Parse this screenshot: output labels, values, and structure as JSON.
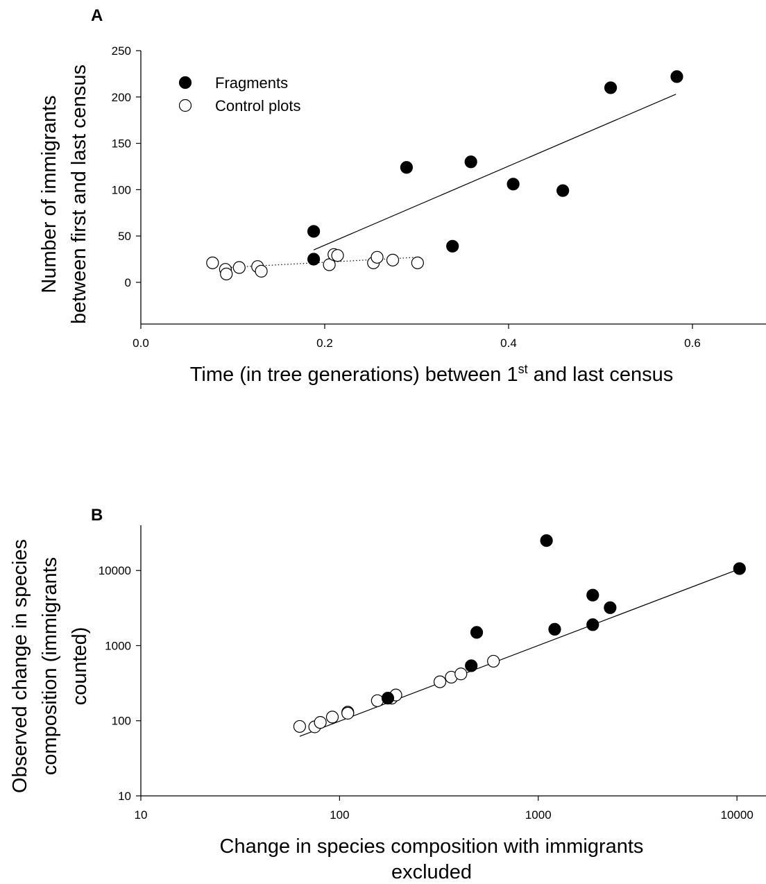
{
  "chart_data": [
    {
      "panel": "A",
      "type": "scatter",
      "xlabel": "Time (in tree generations) between 1st and last census",
      "xlabel_parts": [
        "Time (in tree generations) between 1",
        "st",
        " and last census"
      ],
      "ylabel": [
        "Number of immigrants",
        "between first and last census"
      ],
      "xlim": [
        0.0,
        0.68
      ],
      "ylim": [
        -45,
        250
      ],
      "xticks": [
        0.0,
        0.2,
        0.4,
        0.6
      ],
      "xtick_labels": [
        "0.0",
        "0.2",
        "0.4",
        "0.6"
      ],
      "yticks": [
        0,
        50,
        100,
        150,
        200,
        250
      ],
      "ytick_labels": [
        "0",
        "50",
        "100",
        "150",
        "200",
        "250"
      ],
      "legend_position": "top-left",
      "series": [
        {
          "name": "Fragments",
          "marker": "filled-circle",
          "color": "#000000",
          "x": [
            0.188,
            0.188,
            0.289,
            0.339,
            0.359,
            0.405,
            0.459,
            0.511,
            0.583
          ],
          "y": [
            55,
            25,
            124,
            39,
            130,
            106,
            99,
            210,
            222
          ],
          "trend": {
            "style": "solid",
            "x": [
              0.188,
              0.582
            ],
            "y": [
              35,
              203
            ]
          }
        },
        {
          "name": "Control plots",
          "marker": "open-circle",
          "color": "#000000",
          "x": [
            0.078,
            0.092,
            0.093,
            0.107,
            0.127,
            0.131,
            0.205,
            0.21,
            0.214,
            0.253,
            0.257,
            0.274,
            0.301
          ],
          "y": [
            21,
            14,
            9,
            16,
            17,
            12,
            19,
            30,
            29,
            21,
            27,
            24,
            21
          ],
          "trend": {
            "style": "dotted",
            "x": [
              0.095,
              0.3
            ],
            "y": [
              16,
              27
            ]
          }
        }
      ]
    },
    {
      "panel": "B",
      "type": "scatter",
      "xlabel": [
        "Change in species composition with immigrants",
        "excluded"
      ],
      "ylabel": [
        "Observed change in species",
        "composition (immigrants",
        "counted)"
      ],
      "xscale": "log",
      "yscale": "log",
      "xlim": [
        10,
        14000
      ],
      "ylim": [
        10,
        40000
      ],
      "xticks": [
        10,
        100,
        1000,
        10000
      ],
      "xtick_labels": [
        "10",
        "100",
        "1000",
        "10000"
      ],
      "yticks": [
        10,
        100,
        1000,
        10000
      ],
      "ytick_labels": [
        "10",
        "100",
        "1000",
        "10000"
      ],
      "series": [
        {
          "name": "Fragments",
          "marker": "filled-circle",
          "color": "#000000",
          "x": [
            175,
            460,
            490,
            1100,
            1210,
            1880,
            1880,
            2300,
            10300
          ],
          "y": [
            200,
            540,
            1500,
            25000,
            1650,
            4700,
            1900,
            3200,
            10600
          ]
        },
        {
          "name": "Control plots",
          "marker": "open-circle",
          "color": "#000000",
          "x": [
            63,
            75,
            80,
            92,
            110,
            110,
            155,
            183,
            192,
            320,
            365,
            408,
            595
          ],
          "y": [
            84,
            83,
            95,
            112,
            130,
            126,
            185,
            200,
            220,
            330,
            380,
            420,
            620
          ]
        }
      ],
      "trend": {
        "style": "solid",
        "x": [
          63,
          10000
        ],
        "y": [
          62,
          10200
        ]
      }
    }
  ]
}
